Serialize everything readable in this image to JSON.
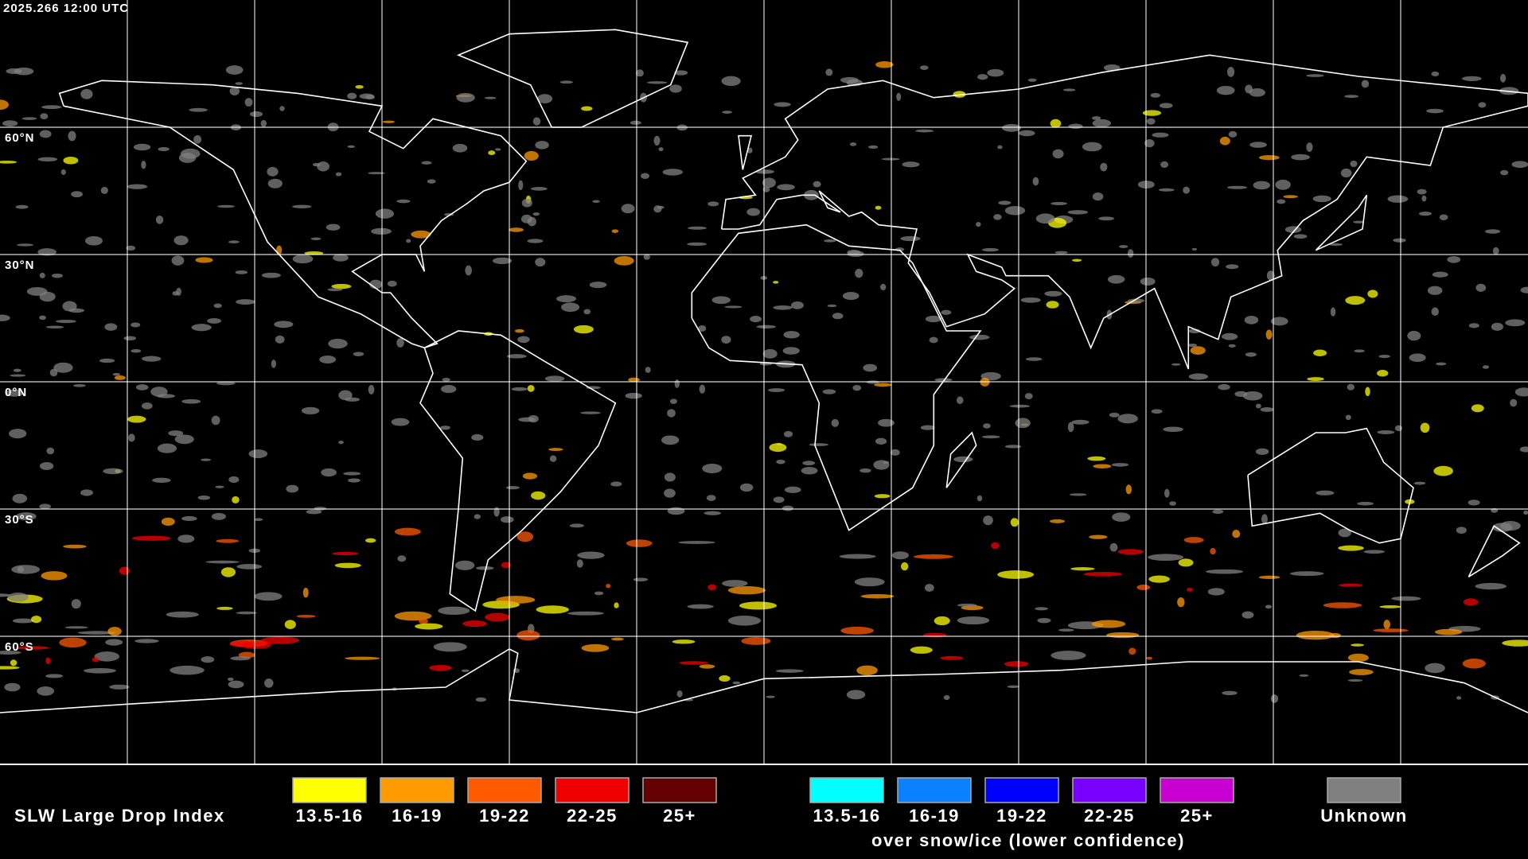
{
  "header": {
    "timestamp": "2025.266 12:00 UTC"
  },
  "map": {
    "lat_labels": [
      "60°N",
      "30°N",
      "0°N",
      "30°S",
      "60°S"
    ]
  },
  "legend": {
    "title": "SLW Large Drop Index",
    "groups": [
      {
        "items": [
          {
            "label": "13.5-16",
            "color": "#ffff00"
          },
          {
            "label": "16-19",
            "color": "#ff9a00"
          },
          {
            "label": "19-22",
            "color": "#ff5a00"
          },
          {
            "label": "22-25",
            "color": "#f00000"
          },
          {
            "label": "25+",
            "color": "#640000"
          }
        ]
      },
      {
        "items": [
          {
            "label": "13.5-16",
            "color": "#00ffff"
          },
          {
            "label": "16-19",
            "color": "#0a82ff"
          },
          {
            "label": "19-22",
            "color": "#0000ff"
          },
          {
            "label": "22-25",
            "color": "#7800ff"
          },
          {
            "label": "25+",
            "color": "#c800d2"
          }
        ],
        "caption": "over snow/ice (lower confidence)"
      }
    ],
    "unknown": {
      "label": "Unknown",
      "color": "#808080"
    }
  }
}
